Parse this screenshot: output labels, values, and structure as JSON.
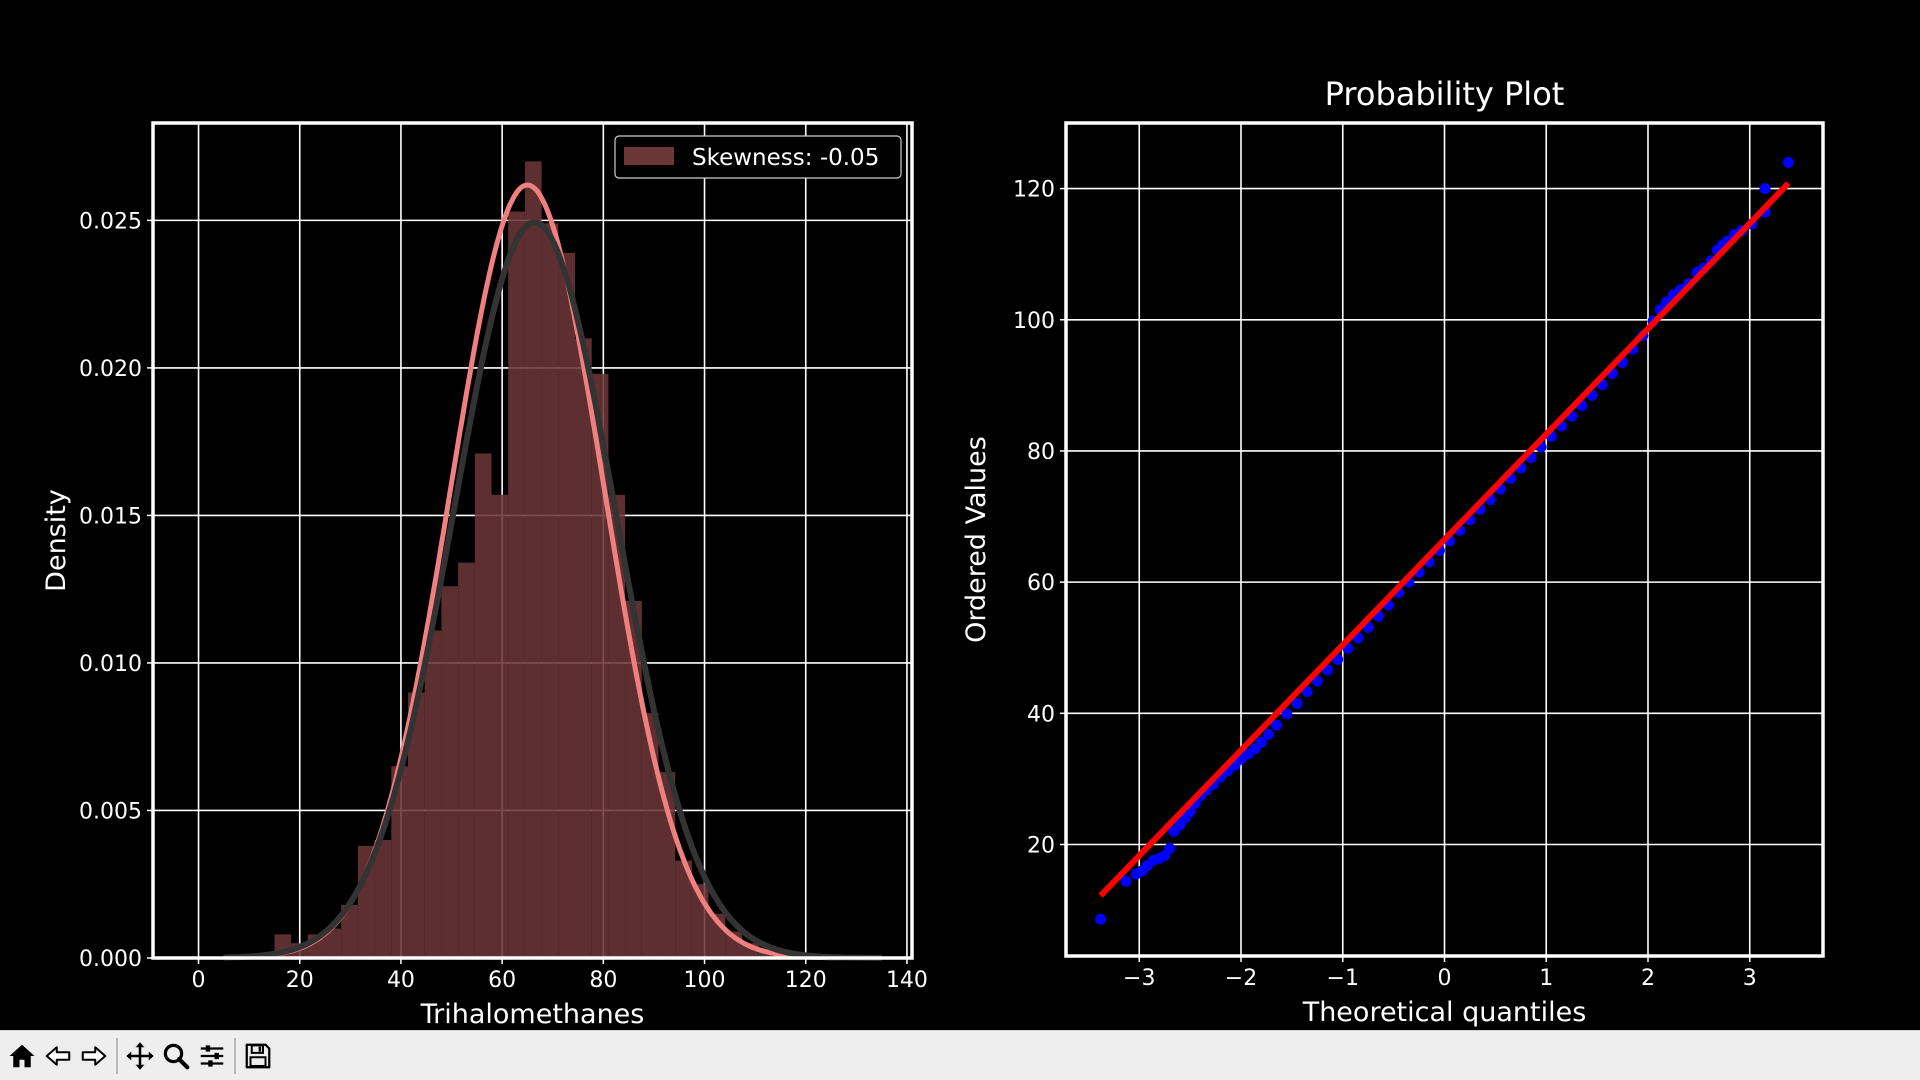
{
  "chart_data": [
    {
      "type": "bar",
      "subtype": "histogram_with_density_curves",
      "title": "",
      "xlabel": "Trihalomethanes",
      "ylabel": "Density",
      "xlim": [
        -9,
        141
      ],
      "ylim": [
        0,
        0.0283
      ],
      "xticks": [
        0,
        20,
        40,
        60,
        80,
        100,
        120,
        140
      ],
      "xtick_labels": [
        "0",
        "20",
        "40",
        "60",
        "80",
        "100",
        "120",
        "140"
      ],
      "yticks": [
        0,
        0.005,
        0.01,
        0.015,
        0.02,
        0.025
      ],
      "ytick_labels": [
        "0.000",
        "0.005",
        "0.010",
        "0.015",
        "0.020",
        "0.025"
      ],
      "grid": true,
      "legend": {
        "placement": "top-right",
        "entries": [
          "Skewness: -0.05"
        ]
      },
      "bin_width": 3.3,
      "bins": [
        {
          "x": 15.0,
          "y": 0.0008
        },
        {
          "x": 18.3,
          "y": 0.0005
        },
        {
          "x": 21.6,
          "y": 0.0008
        },
        {
          "x": 24.9,
          "y": 0.001
        },
        {
          "x": 28.2,
          "y": 0.0018
        },
        {
          "x": 31.5,
          "y": 0.0038
        },
        {
          "x": 34.8,
          "y": 0.004
        },
        {
          "x": 38.1,
          "y": 0.0065
        },
        {
          "x": 41.4,
          "y": 0.009
        },
        {
          "x": 44.7,
          "y": 0.0111
        },
        {
          "x": 48.0,
          "y": 0.0126
        },
        {
          "x": 51.3,
          "y": 0.0134
        },
        {
          "x": 54.6,
          "y": 0.0171
        },
        {
          "x": 57.9,
          "y": 0.0157
        },
        {
          "x": 61.2,
          "y": 0.0253
        },
        {
          "x": 64.5,
          "y": 0.027
        },
        {
          "x": 67.8,
          "y": 0.0249
        },
        {
          "x": 71.1,
          "y": 0.0239
        },
        {
          "x": 74.4,
          "y": 0.021
        },
        {
          "x": 77.7,
          "y": 0.0198
        },
        {
          "x": 81.0,
          "y": 0.0157
        },
        {
          "x": 84.3,
          "y": 0.0121
        },
        {
          "x": 87.6,
          "y": 0.0083
        },
        {
          "x": 90.9,
          "y": 0.0063
        },
        {
          "x": 94.2,
          "y": 0.0033
        },
        {
          "x": 97.5,
          "y": 0.0025
        },
        {
          "x": 100.8,
          "y": 0.0015
        },
        {
          "x": 104.1,
          "y": 0.0009
        },
        {
          "x": 107.4,
          "y": 0.0005
        },
        {
          "x": 110.7,
          "y": 0.0003
        },
        {
          "x": 114.0,
          "y": 0.0002
        },
        {
          "x": 117.3,
          "y": 0.0001
        },
        {
          "x": 120.6,
          "y": 0.0001
        }
      ],
      "kde_peak": {
        "x": 65,
        "y": 0.0262
      },
      "kde_sigma": 15.2,
      "normal_fit": {
        "mean": 66.4,
        "std": 16.0
      },
      "colors": {
        "bars": "#6b3638",
        "kde": "#f08080",
        "normal_fit": "#333333"
      }
    },
    {
      "type": "scatter",
      "subtype": "probability_plot",
      "title": "Probability Plot",
      "xlabel": "Theoretical quantiles",
      "ylabel": "Ordered Values",
      "xlim": [
        -3.72,
        3.72
      ],
      "ylim": [
        3,
        130
      ],
      "xticks": [
        -3,
        -2,
        -1,
        0,
        1,
        2,
        3
      ],
      "xtick_labels": [
        "−3",
        "−2",
        "−1",
        "0",
        "1",
        "2",
        "3"
      ],
      "yticks": [
        20,
        40,
        60,
        80,
        100,
        120
      ],
      "ytick_labels": [
        "20",
        "40",
        "60",
        "80",
        "100",
        "120"
      ],
      "grid": true,
      "fit_line": {
        "x": [
          -3.38,
          3.38
        ],
        "y": [
          12.2,
          120.8
        ]
      },
      "points": [
        {
          "x": -3.38,
          "y": 8.6
        },
        {
          "x": -3.13,
          "y": 14.4
        },
        {
          "x": -3.03,
          "y": 15.5
        },
        {
          "x": -2.97,
          "y": 16.0
        },
        {
          "x": -2.92,
          "y": 16.8
        },
        {
          "x": -2.86,
          "y": 17.6
        },
        {
          "x": -2.8,
          "y": 17.9
        },
        {
          "x": -2.75,
          "y": 18.3
        },
        {
          "x": -2.7,
          "y": 19.4
        },
        {
          "x": -2.66,
          "y": 22.0
        },
        {
          "x": -2.6,
          "y": 23.0
        },
        {
          "x": -2.55,
          "y": 24.0
        },
        {
          "x": -2.5,
          "y": 25.0
        },
        {
          "x": -2.45,
          "y": 26.3
        },
        {
          "x": -2.4,
          "y": 27.4
        },
        {
          "x": -2.34,
          "y": 28.3
        },
        {
          "x": -2.27,
          "y": 29.2
        },
        {
          "x": -2.2,
          "y": 30.3
        },
        {
          "x": -2.13,
          "y": 31.2
        },
        {
          "x": -2.06,
          "y": 32.1
        },
        {
          "x": -2.0,
          "y": 33.0
        },
        {
          "x": -1.93,
          "y": 33.8
        },
        {
          "x": -1.86,
          "y": 34.6
        },
        {
          "x": -1.8,
          "y": 35.6
        },
        {
          "x": -1.73,
          "y": 36.8
        },
        {
          "x": -1.65,
          "y": 38.2
        },
        {
          "x": -1.55,
          "y": 39.9
        },
        {
          "x": -1.45,
          "y": 41.5
        },
        {
          "x": -1.35,
          "y": 43.3
        },
        {
          "x": -1.25,
          "y": 44.9
        },
        {
          "x": -1.15,
          "y": 46.6
        },
        {
          "x": -1.05,
          "y": 48.2
        },
        {
          "x": -0.95,
          "y": 49.9
        },
        {
          "x": -0.85,
          "y": 51.5
        },
        {
          "x": -0.75,
          "y": 53.1
        },
        {
          "x": -0.65,
          "y": 54.8
        },
        {
          "x": -0.55,
          "y": 56.5
        },
        {
          "x": -0.45,
          "y": 58.4
        },
        {
          "x": -0.35,
          "y": 60.0
        },
        {
          "x": -0.25,
          "y": 61.5
        },
        {
          "x": -0.15,
          "y": 63.1
        },
        {
          "x": -0.05,
          "y": 64.8
        },
        {
          "x": 0.05,
          "y": 66.3
        },
        {
          "x": 0.15,
          "y": 67.9
        },
        {
          "x": 0.25,
          "y": 69.5
        },
        {
          "x": 0.35,
          "y": 71.1
        },
        {
          "x": 0.45,
          "y": 72.6
        },
        {
          "x": 0.55,
          "y": 74.2
        },
        {
          "x": 0.65,
          "y": 75.8
        },
        {
          "x": 0.75,
          "y": 77.4
        },
        {
          "x": 0.85,
          "y": 79.0
        },
        {
          "x": 0.95,
          "y": 80.6
        },
        {
          "x": 1.05,
          "y": 82.2
        },
        {
          "x": 1.15,
          "y": 83.8
        },
        {
          "x": 1.25,
          "y": 85.3
        },
        {
          "x": 1.35,
          "y": 86.9
        },
        {
          "x": 1.45,
          "y": 88.5
        },
        {
          "x": 1.55,
          "y": 90.1
        },
        {
          "x": 1.65,
          "y": 91.8
        },
        {
          "x": 1.75,
          "y": 93.5
        },
        {
          "x": 1.85,
          "y": 95.5
        },
        {
          "x": 1.95,
          "y": 97.6
        },
        {
          "x": 2.05,
          "y": 99.8
        },
        {
          "x": 2.12,
          "y": 101.5
        },
        {
          "x": 2.18,
          "y": 102.7
        },
        {
          "x": 2.25,
          "y": 103.8
        },
        {
          "x": 2.32,
          "y": 104.6
        },
        {
          "x": 2.4,
          "y": 105.5
        },
        {
          "x": 2.48,
          "y": 107.2
        },
        {
          "x": 2.55,
          "y": 107.9
        },
        {
          "x": 2.62,
          "y": 109.0
        },
        {
          "x": 2.68,
          "y": 110.6
        },
        {
          "x": 2.73,
          "y": 111.4
        },
        {
          "x": 2.78,
          "y": 112.0
        },
        {
          "x": 2.85,
          "y": 113.0
        },
        {
          "x": 2.92,
          "y": 113.6
        },
        {
          "x": 3.02,
          "y": 114.6
        },
        {
          "x": 3.15,
          "y": 116.4
        },
        {
          "x": 3.15,
          "y": 120.0
        },
        {
          "x": 3.38,
          "y": 124.0
        }
      ],
      "colors": {
        "points": "#0000ff",
        "fit_line": "#ff0000"
      }
    }
  ],
  "toolbar": {
    "buttons": [
      {
        "name": "home-button",
        "icon": "home-icon"
      },
      {
        "name": "back-button",
        "icon": "arrow-left-icon"
      },
      {
        "name": "forward-button",
        "icon": "arrow-right-icon"
      },
      {
        "name": "pan-button",
        "icon": "move-icon"
      },
      {
        "name": "zoom-button",
        "icon": "magnifier-icon"
      },
      {
        "name": "configure-subplots-button",
        "icon": "sliders-icon"
      },
      {
        "name": "save-button",
        "icon": "floppy-disk-icon"
      }
    ]
  }
}
